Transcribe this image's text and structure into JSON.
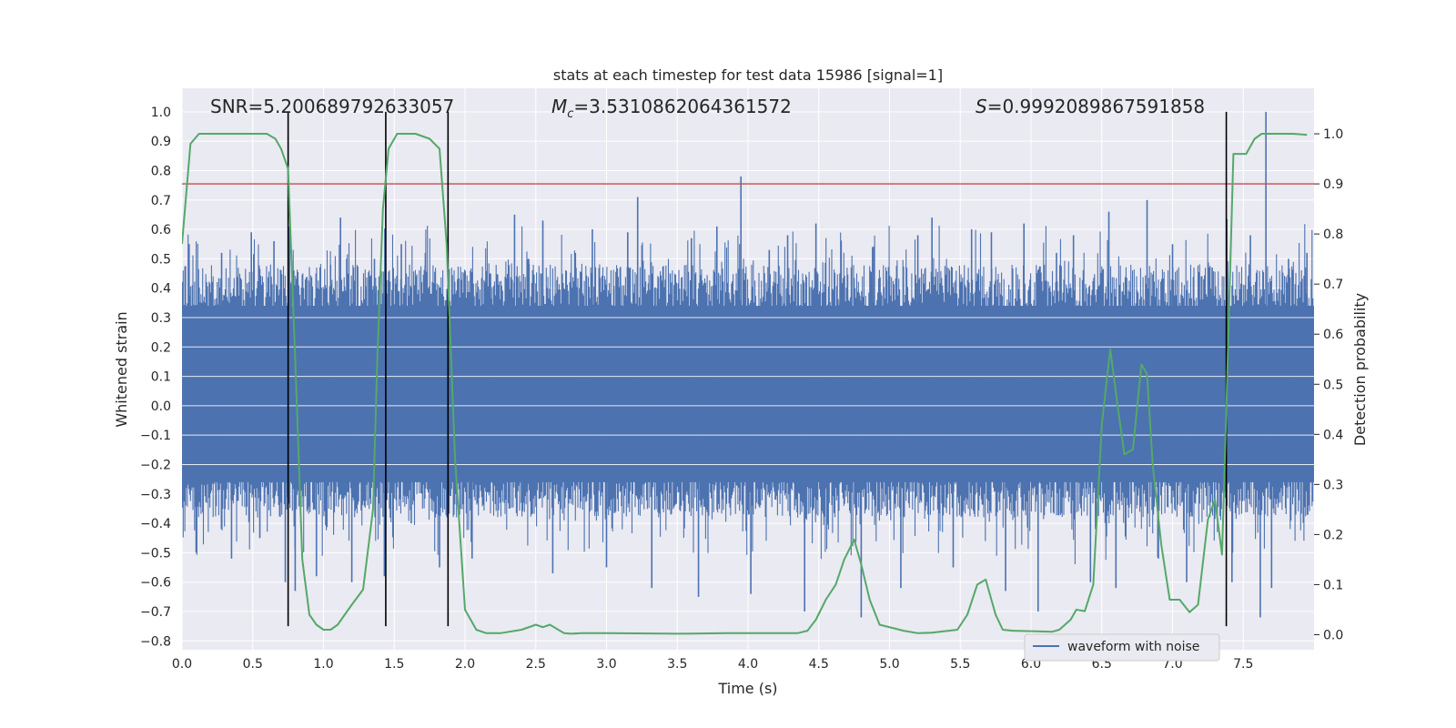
{
  "chart_data": {
    "type": "line",
    "title": "stats at each timestep for test data 15986 [signal=1]",
    "xlabel": "Time (s)",
    "ylabel": "Whitened strain",
    "ylabel_right": "Detection probability",
    "xlim": [
      0.0,
      8.0
    ],
    "ylim": [
      -0.83,
      1.08
    ],
    "ylim_right": [
      -0.03,
      1.0909
    ],
    "x_ticks": [
      0.0,
      0.5,
      1.0,
      1.5,
      2.0,
      2.5,
      3.0,
      3.5,
      4.0,
      4.5,
      5.0,
      5.5,
      6.0,
      6.5,
      7.0,
      7.5
    ],
    "x_tick_labels": [
      "0.0",
      "0.5",
      "1.0",
      "1.5",
      "2.0",
      "2.5",
      "3.0",
      "3.5",
      "4.0",
      "4.5",
      "5.0",
      "5.5",
      "6.0",
      "6.5",
      "7.0",
      "7.5"
    ],
    "y_ticks": [
      1.0,
      0.9,
      0.8,
      0.7,
      0.6,
      0.5,
      0.4,
      0.3,
      0.2,
      0.1,
      0.0,
      -0.1,
      -0.2,
      -0.3,
      -0.4,
      -0.5,
      -0.6,
      -0.7,
      -0.8
    ],
    "y_tick_labels": [
      "1.0",
      "0.9",
      "0.8",
      "0.7",
      "0.6",
      "0.5",
      "0.4",
      "0.3",
      "0.2",
      "0.1",
      "0.0",
      "−0.1",
      "−0.2",
      "−0.3",
      "−0.4",
      "−0.5",
      "−0.6",
      "−0.7",
      "−0.8"
    ],
    "y_right_ticks": [
      1.0,
      0.9,
      0.8,
      0.7,
      0.6,
      0.5,
      0.4,
      0.3,
      0.2,
      0.1,
      0.0
    ],
    "y_right_tick_labels": [
      "1.0",
      "0.9",
      "0.8",
      "0.7",
      "0.6",
      "0.5",
      "0.4",
      "0.3",
      "0.2",
      "0.1",
      "0.0"
    ],
    "annotations": {
      "snr": "SNR=5.200689792633057",
      "mc_symbol": "M",
      "mc_sub": "c",
      "mc_value": "=3.5310862064361572",
      "s_symbol": "S",
      "s_value": "=0.9992089867591858"
    },
    "threshold_probability": 0.9,
    "vertical_lines_x": [
      0.75,
      1.44,
      1.88,
      7.38
    ],
    "vertical_lines_yrange": [
      -0.75,
      1.0
    ],
    "series": [
      {
        "name": "waveform with noise",
        "axis": "left",
        "color": "#4c72b0",
        "description": "dense whitened strain noise, core band approx -0.25..0.35 with spikes",
        "core_band": [
          -0.26,
          0.34
        ],
        "spikes": [
          [
            0.05,
            0.55
          ],
          [
            0.1,
            -0.5
          ],
          [
            0.28,
            0.52
          ],
          [
            0.35,
            -0.52
          ],
          [
            0.49,
            0.59
          ],
          [
            0.55,
            -0.45
          ],
          [
            0.65,
            0.56
          ],
          [
            0.73,
            -0.6
          ],
          [
            0.76,
            0.61
          ],
          [
            0.8,
            -0.63
          ],
          [
            0.9,
            0.42
          ],
          [
            0.95,
            -0.58
          ],
          [
            1.05,
            0.48
          ],
          [
            1.12,
            0.64
          ],
          [
            1.2,
            -0.6
          ],
          [
            1.36,
            0.5
          ],
          [
            1.43,
            -0.58
          ],
          [
            1.55,
            0.55
          ],
          [
            1.62,
            -0.4
          ],
          [
            1.72,
            0.52
          ],
          [
            1.82,
            -0.55
          ],
          [
            1.95,
            0.42
          ],
          [
            2.05,
            -0.52
          ],
          [
            2.18,
            0.45
          ],
          [
            2.35,
            0.65
          ],
          [
            2.45,
            0.5
          ],
          [
            2.55,
            0.63
          ],
          [
            2.62,
            -0.57
          ],
          [
            2.78,
            0.52
          ],
          [
            2.9,
            0.6
          ],
          [
            3.0,
            -0.55
          ],
          [
            3.15,
            0.59
          ],
          [
            3.22,
            0.71
          ],
          [
            3.32,
            -0.62
          ],
          [
            3.45,
            0.45
          ],
          [
            3.6,
            0.57
          ],
          [
            3.65,
            -0.65
          ],
          [
            3.78,
            0.61
          ],
          [
            3.95,
            0.78
          ],
          [
            4.02,
            -0.64
          ],
          [
            4.15,
            0.53
          ],
          [
            4.28,
            0.58
          ],
          [
            4.4,
            -0.7
          ],
          [
            4.48,
            0.62
          ],
          [
            4.65,
            0.45
          ],
          [
            4.8,
            -0.72
          ],
          [
            4.88,
            0.54
          ],
          [
            4.98,
            0.43
          ],
          [
            5.08,
            -0.62
          ],
          [
            5.2,
            0.58
          ],
          [
            5.3,
            0.64
          ],
          [
            5.45,
            -0.55
          ],
          [
            5.58,
            0.6
          ],
          [
            5.72,
            0.59
          ],
          [
            5.82,
            -0.63
          ],
          [
            5.95,
            0.62
          ],
          [
            6.05,
            -0.7
          ],
          [
            6.18,
            0.52
          ],
          [
            6.3,
            0.58
          ],
          [
            6.42,
            -0.6
          ],
          [
            6.55,
            0.66
          ],
          [
            6.6,
            -0.62
          ],
          [
            6.82,
            0.7
          ],
          [
            6.9,
            -0.52
          ],
          [
            7.0,
            0.55
          ],
          [
            7.1,
            -0.6
          ],
          [
            7.28,
            0.47
          ],
          [
            7.42,
            -0.6
          ],
          [
            7.55,
            0.58
          ],
          [
            7.62,
            -0.72
          ],
          [
            7.66,
            1.0
          ],
          [
            7.7,
            -0.62
          ],
          [
            7.82,
            0.5
          ],
          [
            7.95,
            0.52
          ]
        ]
      },
      {
        "name": "detection probability",
        "axis": "right",
        "color": "#55a868",
        "x": [
          0.0,
          0.06,
          0.12,
          0.2,
          0.3,
          0.4,
          0.5,
          0.6,
          0.66,
          0.7,
          0.75,
          0.8,
          0.85,
          0.9,
          0.95,
          1.0,
          1.05,
          1.1,
          1.15,
          1.2,
          1.28,
          1.35,
          1.38,
          1.42,
          1.46,
          1.52,
          1.58,
          1.65,
          1.75,
          1.82,
          1.87,
          1.93,
          2.0,
          2.08,
          2.15,
          2.25,
          2.4,
          2.5,
          2.55,
          2.6,
          2.7,
          2.75,
          2.82,
          3.0,
          3.5,
          3.85,
          3.95,
          4.35,
          4.42,
          4.48,
          4.55,
          4.62,
          4.68,
          4.75,
          4.8,
          4.86,
          4.93,
          5.1,
          5.2,
          5.3,
          5.48,
          5.55,
          5.62,
          5.68,
          5.75,
          5.8,
          5.87,
          6.15,
          6.2,
          6.28,
          6.32,
          6.38,
          6.44,
          6.5,
          6.56,
          6.61,
          6.66,
          6.72,
          6.78,
          6.82,
          6.86,
          6.92,
          6.98,
          7.05,
          7.12,
          7.18,
          7.25,
          7.3,
          7.35,
          7.38,
          7.43,
          7.48,
          7.52,
          7.58,
          7.63,
          7.68,
          7.75,
          7.85,
          7.95
        ],
        "y": [
          0.78,
          0.98,
          1.0,
          1.0,
          1.0,
          1.0,
          1.0,
          1.0,
          0.99,
          0.97,
          0.93,
          0.55,
          0.15,
          0.04,
          0.02,
          0.01,
          0.01,
          0.02,
          0.04,
          0.06,
          0.09,
          0.25,
          0.55,
          0.85,
          0.97,
          1.0,
          1.0,
          1.0,
          0.99,
          0.97,
          0.78,
          0.35,
          0.05,
          0.01,
          0.003,
          0.003,
          0.01,
          0.02,
          0.015,
          0.02,
          0.003,
          0.002,
          0.003,
          0.003,
          0.002,
          0.003,
          0.003,
          0.003,
          0.008,
          0.03,
          0.07,
          0.1,
          0.15,
          0.19,
          0.14,
          0.07,
          0.02,
          0.008,
          0.003,
          0.004,
          0.01,
          0.04,
          0.1,
          0.11,
          0.04,
          0.01,
          0.008,
          0.006,
          0.01,
          0.03,
          0.05,
          0.047,
          0.1,
          0.42,
          0.57,
          0.46,
          0.36,
          0.37,
          0.54,
          0.52,
          0.34,
          0.18,
          0.07,
          0.07,
          0.045,
          0.06,
          0.23,
          0.27,
          0.16,
          0.45,
          0.96,
          0.96,
          0.96,
          0.99,
          1.0,
          1.0,
          1.0,
          1.0,
          0.998
        ]
      }
    ],
    "legend": {
      "placement": "bottom-right",
      "entries": [
        "waveform with noise"
      ]
    },
    "grid": true
  },
  "style": {
    "plot_bg": "#eaeaf2",
    "grid_color": "#ffffff",
    "strain_color": "#4c72b0",
    "prob_color": "#55a868",
    "threshold_color": "#c44e52",
    "vline_color": "#000000",
    "text_color": "#262626"
  }
}
